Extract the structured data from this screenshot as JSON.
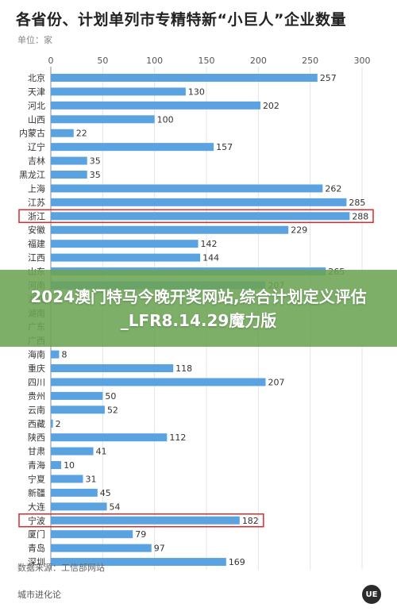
{
  "title": "各省份、计划单列市专精特新“小巨人”企业数量",
  "unit_label": "单位：家",
  "source_label": "数据来源：工信部网站",
  "footer_brand": "城市进化论",
  "banner_text": "2024澳门特马今晚开奖网站,综合计划定义评估_LFR8.14.29魔力版",
  "colors": {
    "bar": "#5aa3e0",
    "highlight_border": "#d92b2b",
    "banner": "#6ba454"
  },
  "chart_data": {
    "type": "bar",
    "orientation": "horizontal",
    "title": "各省份、计划单列市专精特新“小巨人”企业数量",
    "unit": "单位：家",
    "xlim": [
      0,
      300
    ],
    "xticks": [
      0,
      50,
      100,
      150,
      200,
      250,
      300
    ],
    "xtick_position": "top",
    "grid": true,
    "data_labels": true,
    "categories": [
      "北京",
      "天津",
      "河北",
      "山西",
      "内蒙古",
      "辽宁",
      "吉林",
      "黑龙江",
      "上海",
      "江苏",
      "浙江",
      "安徽",
      "福建",
      "江西",
      "山东",
      "河南",
      "湖北",
      "湖南",
      "广东",
      "广西",
      "海南",
      "重庆",
      "四川",
      "贵州",
      "云南",
      "西藏",
      "陕西",
      "甘肃",
      "青海",
      "宁夏",
      "新疆",
      "大连",
      "宁波",
      "厦门",
      "青岛",
      "深圳"
    ],
    "values": [
      257,
      130,
      202,
      100,
      22,
      157,
      35,
      35,
      262,
      285,
      288,
      229,
      142,
      144,
      265,
      207,
      null,
      null,
      null,
      null,
      8,
      118,
      207,
      50,
      52,
      2,
      112,
      41,
      10,
      31,
      45,
      54,
      182,
      79,
      97,
      169
    ],
    "highlighted": [
      "浙江",
      "宁波"
    ]
  }
}
